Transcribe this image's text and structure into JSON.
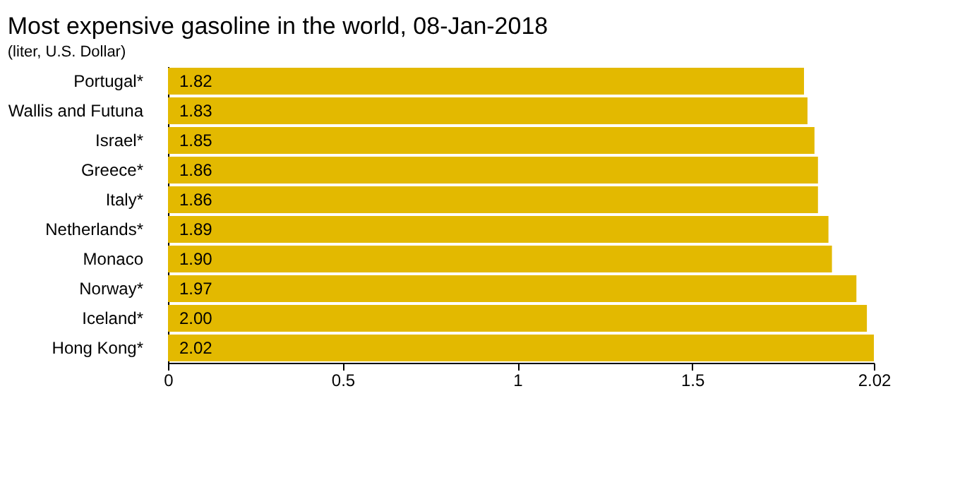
{
  "chart_data": {
    "type": "bar",
    "orientation": "horizontal",
    "title": "Most expensive gasoline in the world, 08-Jan-2018",
    "subtitle": "(liter, U.S. Dollar)",
    "categories": [
      "Portugal*",
      "Wallis and Futuna",
      "Israel*",
      "Greece*",
      "Italy*",
      "Netherlands*",
      "Monaco",
      "Norway*",
      "Iceland*",
      "Hong Kong*"
    ],
    "values": [
      1.82,
      1.83,
      1.85,
      1.86,
      1.86,
      1.89,
      1.9,
      1.97,
      2.0,
      2.02
    ],
    "value_labels": [
      "1.82",
      "1.83",
      "1.85",
      "1.86",
      "1.86",
      "1.89",
      "1.90",
      "1.97",
      "2.00",
      "2.02"
    ],
    "color": "#e3b900",
    "xlim": [
      0,
      2.02
    ],
    "xticks": [
      0,
      0.5,
      1,
      1.5,
      2.02
    ],
    "grid": false
  }
}
